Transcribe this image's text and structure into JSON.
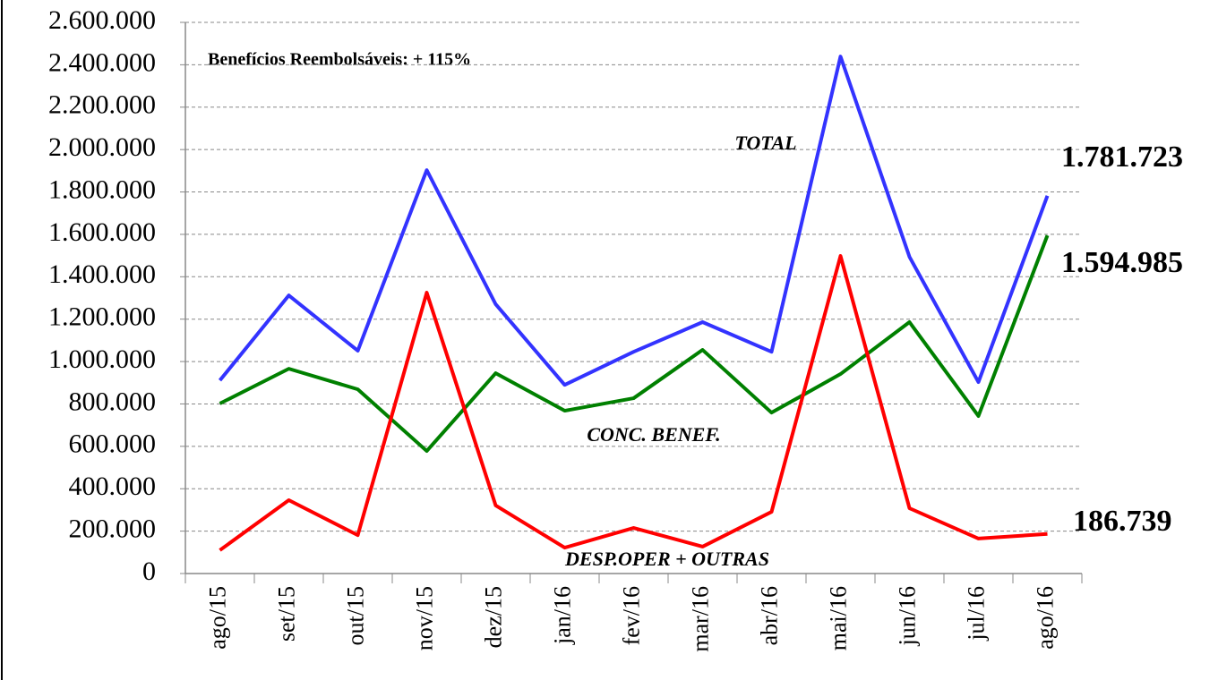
{
  "chart_data": {
    "type": "line",
    "annotation": "Benefícios Reembolsáveis:  + 115%",
    "categories": [
      "ago/15",
      "set/15",
      "out/15",
      "nov/15",
      "dez/15",
      "jan/16",
      "fev/16",
      "mar/16",
      "abr/16",
      "mai/16",
      "jun/16",
      "jul/16",
      "ago/16"
    ],
    "series": [
      {
        "name": "TOTAL",
        "color": "#3333ff",
        "values": [
          911000,
          1312000,
          1051000,
          1903000,
          1270000,
          890000,
          1046000,
          1186000,
          1046000,
          2439000,
          1494000,
          903000,
          1781723
        ],
        "value_labels": [
          null,
          null,
          null,
          null,
          null,
          null,
          null,
          null,
          null,
          null,
          null,
          null,
          "1.781.723"
        ]
      },
      {
        "name": "CONC. BENEF.",
        "color": "#008000",
        "values": [
          802000,
          966000,
          869000,
          578000,
          945000,
          768000,
          827000,
          1055000,
          759000,
          941000,
          1186000,
          743000,
          1594985
        ],
        "value_labels": [
          null,
          null,
          null,
          null,
          null,
          null,
          null,
          null,
          null,
          null,
          null,
          null,
          "1.594.985"
        ]
      },
      {
        "name": "DESP.OPER + OUTRAS",
        "color": "#ff0000",
        "values": [
          110000,
          346000,
          181000,
          1325000,
          321000,
          122000,
          215000,
          127000,
          291000,
          1498000,
          308000,
          165000,
          186739
        ],
        "value_labels": [
          null,
          null,
          null,
          null,
          null,
          null,
          null,
          null,
          null,
          null,
          null,
          null,
          "186.739"
        ]
      }
    ],
    "ylim": [
      0,
      2600000
    ],
    "yticks": [
      0,
      {
        "value": 200000,
        "label": "200.000"
      },
      {
        "value": 400000,
        "label": "400.000"
      },
      {
        "value": 600000,
        "label": "600.000"
      },
      {
        "value": 800000,
        "label": "800.000"
      },
      {
        "value": 1000000,
        "label": "1.000.000"
      },
      {
        "value": 1200000,
        "label": "1.200.000"
      },
      {
        "value": 1400000,
        "label": "1.400.000"
      },
      {
        "value": 1600000,
        "label": "1.600.000"
      },
      {
        "value": 1800000,
        "label": "1.800.000"
      },
      {
        "value": 2000000,
        "label": "2.000.000"
      },
      {
        "value": 2200000,
        "label": "2.200.000"
      },
      {
        "value": 2400000,
        "label": "2.400.000"
      },
      {
        "value": 2600000,
        "label": "2.600.000"
      }
    ],
    "grid": true
  }
}
